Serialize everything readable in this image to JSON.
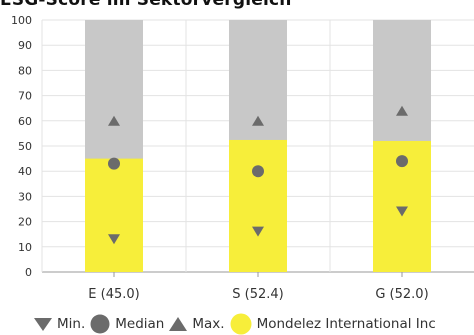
{
  "title": "ESG-Score im Sektorvergleich",
  "colors": {
    "bar_bg": "#c8c8c8",
    "bar_fill": "#f7ee3a",
    "marker": "#6b6b6b",
    "grid": "#e3e3e3",
    "axis": "#999999"
  },
  "chart_data": {
    "type": "bar",
    "title": "ESG-Score im Sektorvergleich",
    "categories": [
      "E (45.0)",
      "S (52.4)",
      "G (52.0)"
    ],
    "ylim": [
      0,
      100
    ],
    "yticks": [
      0,
      10,
      20,
      30,
      40,
      50,
      60,
      70,
      80,
      90,
      100
    ],
    "grid": true,
    "legend_position": "bottom",
    "series": [
      {
        "name": "Mondelez International Inc",
        "type": "bar",
        "values": [
          45.0,
          52.4,
          52.0
        ]
      },
      {
        "name": "Min.",
        "type": "marker",
        "marker": "triangle-down",
        "values": [
          13,
          16,
          24
        ]
      },
      {
        "name": "Median",
        "type": "marker",
        "marker": "circle",
        "values": [
          43,
          40,
          44
        ]
      },
      {
        "name": "Max.",
        "type": "marker",
        "marker": "triangle-up",
        "values": [
          60,
          60,
          64
        ]
      }
    ]
  },
  "legend": [
    {
      "label": "Min.",
      "icon": "triangle-down-icon"
    },
    {
      "label": "Median",
      "icon": "circle-icon"
    },
    {
      "label": "Max.",
      "icon": "triangle-up-icon"
    },
    {
      "label": "Mondelez International Inc",
      "icon": "yellow-circle-icon"
    }
  ]
}
